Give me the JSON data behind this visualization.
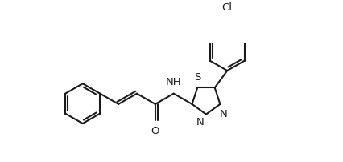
{
  "background_color": "#ffffff",
  "line_color": "#1a1a1a",
  "line_width": 1.5,
  "font_size": 9.5,
  "figsize": [
    4.26,
    2.02
  ],
  "dpi": 100,
  "xlim": [
    0,
    8.52
  ],
  "ylim": [
    0,
    4.04
  ]
}
